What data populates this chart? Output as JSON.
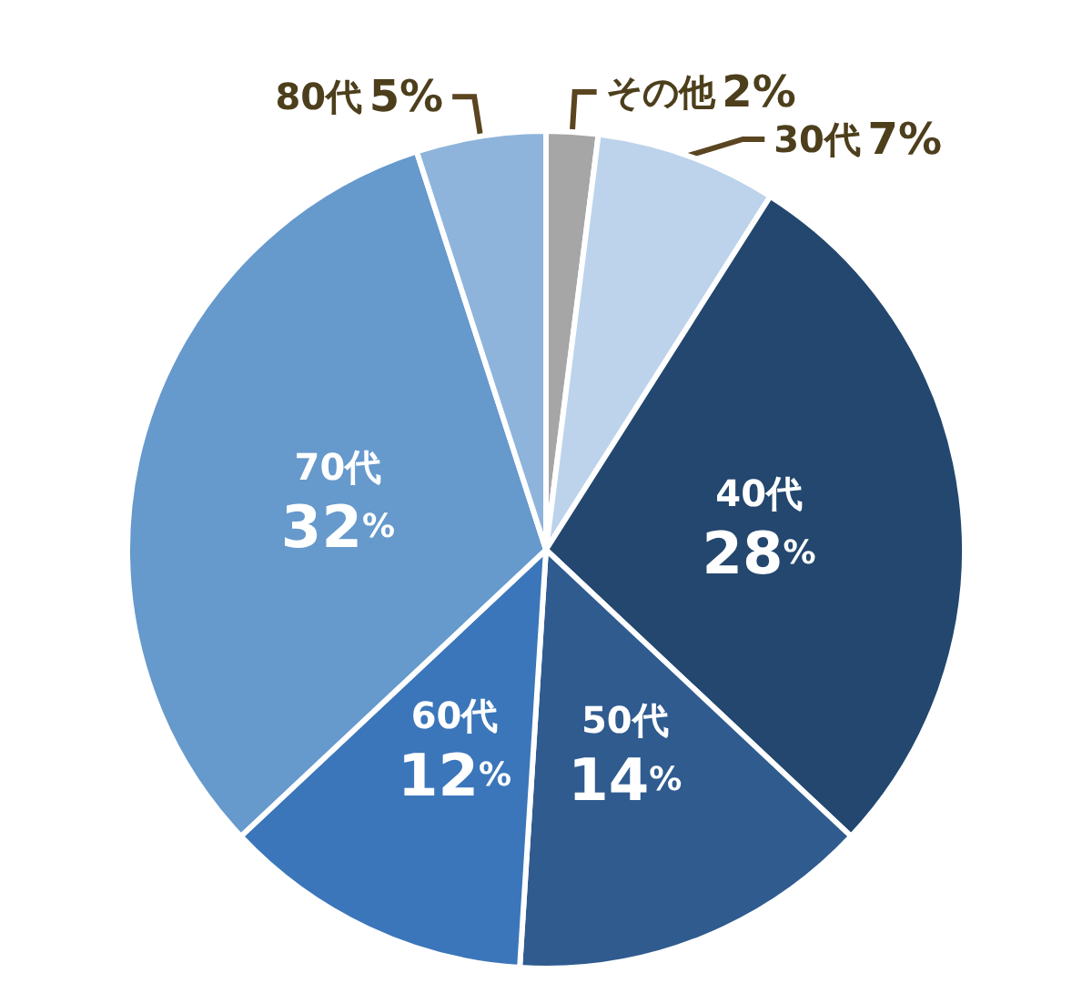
{
  "chart_data": {
    "type": "pie",
    "categories": [
      "その他",
      "30代",
      "40代",
      "50代",
      "60代",
      "70代",
      "80代"
    ],
    "values": [
      2,
      7,
      28,
      14,
      12,
      32,
      5
    ],
    "value_labels": [
      "2%",
      "7%",
      "28%",
      "14%",
      "12%",
      "32%",
      "5%"
    ],
    "colors": [
      "#a6a6a6",
      "#bdd3eb",
      "#23476e",
      "#2f5b8f",
      "#3b76ba",
      "#6699cc",
      "#8fb4dc"
    ],
    "legend": false
  }
}
